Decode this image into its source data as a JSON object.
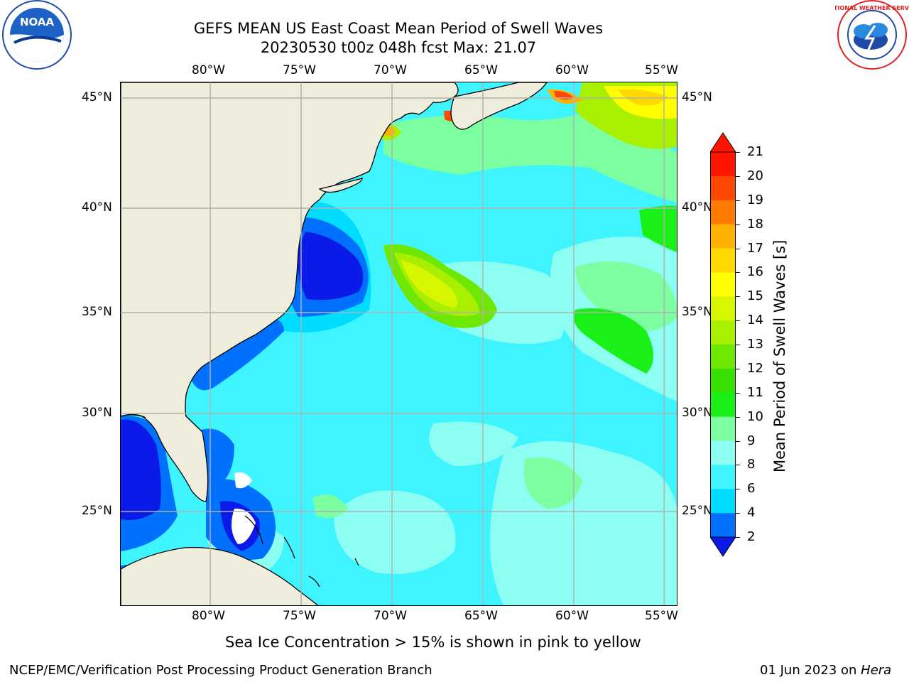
{
  "title": {
    "line1": "GEFS MEAN US East Coast Mean Period of Swell Waves",
    "line2": "20230530 t00z 048h fcst   Max: 21.07"
  },
  "logos": {
    "left": {
      "icon": "noaa-logo",
      "text": "NOAA"
    },
    "right": {
      "icon": "nws-logo",
      "text": "NATIONAL WEATHER SERVICE"
    }
  },
  "map": {
    "lon_labels": [
      "80°W",
      "75°W",
      "70°W",
      "65°W",
      "60°W",
      "55°W"
    ],
    "lat_labels": [
      "45°N",
      "40°N",
      "35°N",
      "30°N",
      "25°N"
    ]
  },
  "colorbar": {
    "title": "Mean Period of Swell Waves [s]",
    "ticks": [
      "21",
      "20",
      "19",
      "18",
      "17",
      "16",
      "15",
      "14",
      "13",
      "12",
      "11",
      "10",
      "9",
      "8",
      "6",
      "4",
      "2"
    ],
    "colors": [
      "#ff1500",
      "#ff4800",
      "#ff7b00",
      "#ffb000",
      "#ffd800",
      "#ffff00",
      "#d6f700",
      "#a8f000",
      "#6ee800",
      "#38e000",
      "#18f018",
      "#7cffa0",
      "#8cfff2",
      "#3ef5ff",
      "#00dcff",
      "#0070ff",
      "#0a1ae8"
    ],
    "under_color": "#0a1ae8",
    "over_color": "#ff1500"
  },
  "colors": {
    "land": "#efeedd",
    "grid": "#b0b0b0"
  },
  "footer": {
    "ice_note": "Sea Ice Concentration > 15% is shown in pink to yellow",
    "branch": "NCEP/EMC/Verification Post Processing Product Generation Branch",
    "date": "01 Jun 2023 on ",
    "host": "Hera"
  }
}
